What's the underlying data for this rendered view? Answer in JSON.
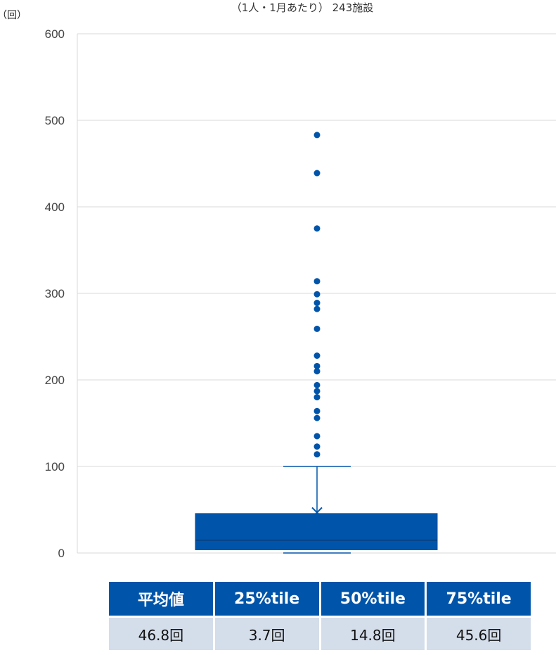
{
  "chart_data": {
    "type": "box",
    "title": "（1人・1月あたり） 243施設",
    "unit_label": "（回）",
    "ylim": [
      0,
      600
    ],
    "yticks": [
      "0",
      "100",
      "200",
      "300",
      "400",
      "500",
      "600"
    ],
    "grid": true,
    "box": {
      "q1": 3.7,
      "median": 14.8,
      "q3": 45.6,
      "whisker_low": 0,
      "whisker_high": 100,
      "mean": 46.8
    },
    "outliers": [
      483,
      439,
      375,
      314,
      299,
      289,
      282,
      259,
      228,
      216,
      210,
      194,
      187,
      180,
      164,
      156,
      135,
      123,
      114
    ],
    "colors": {
      "box": "#0055aa",
      "grid": "#d9d9d9"
    }
  },
  "stats_table": {
    "headers": [
      "平均値",
      "25%tile",
      "50%tile",
      "75%tile"
    ],
    "values": [
      "46.8回",
      "3.7回",
      "14.8回",
      "45.6回"
    ]
  }
}
